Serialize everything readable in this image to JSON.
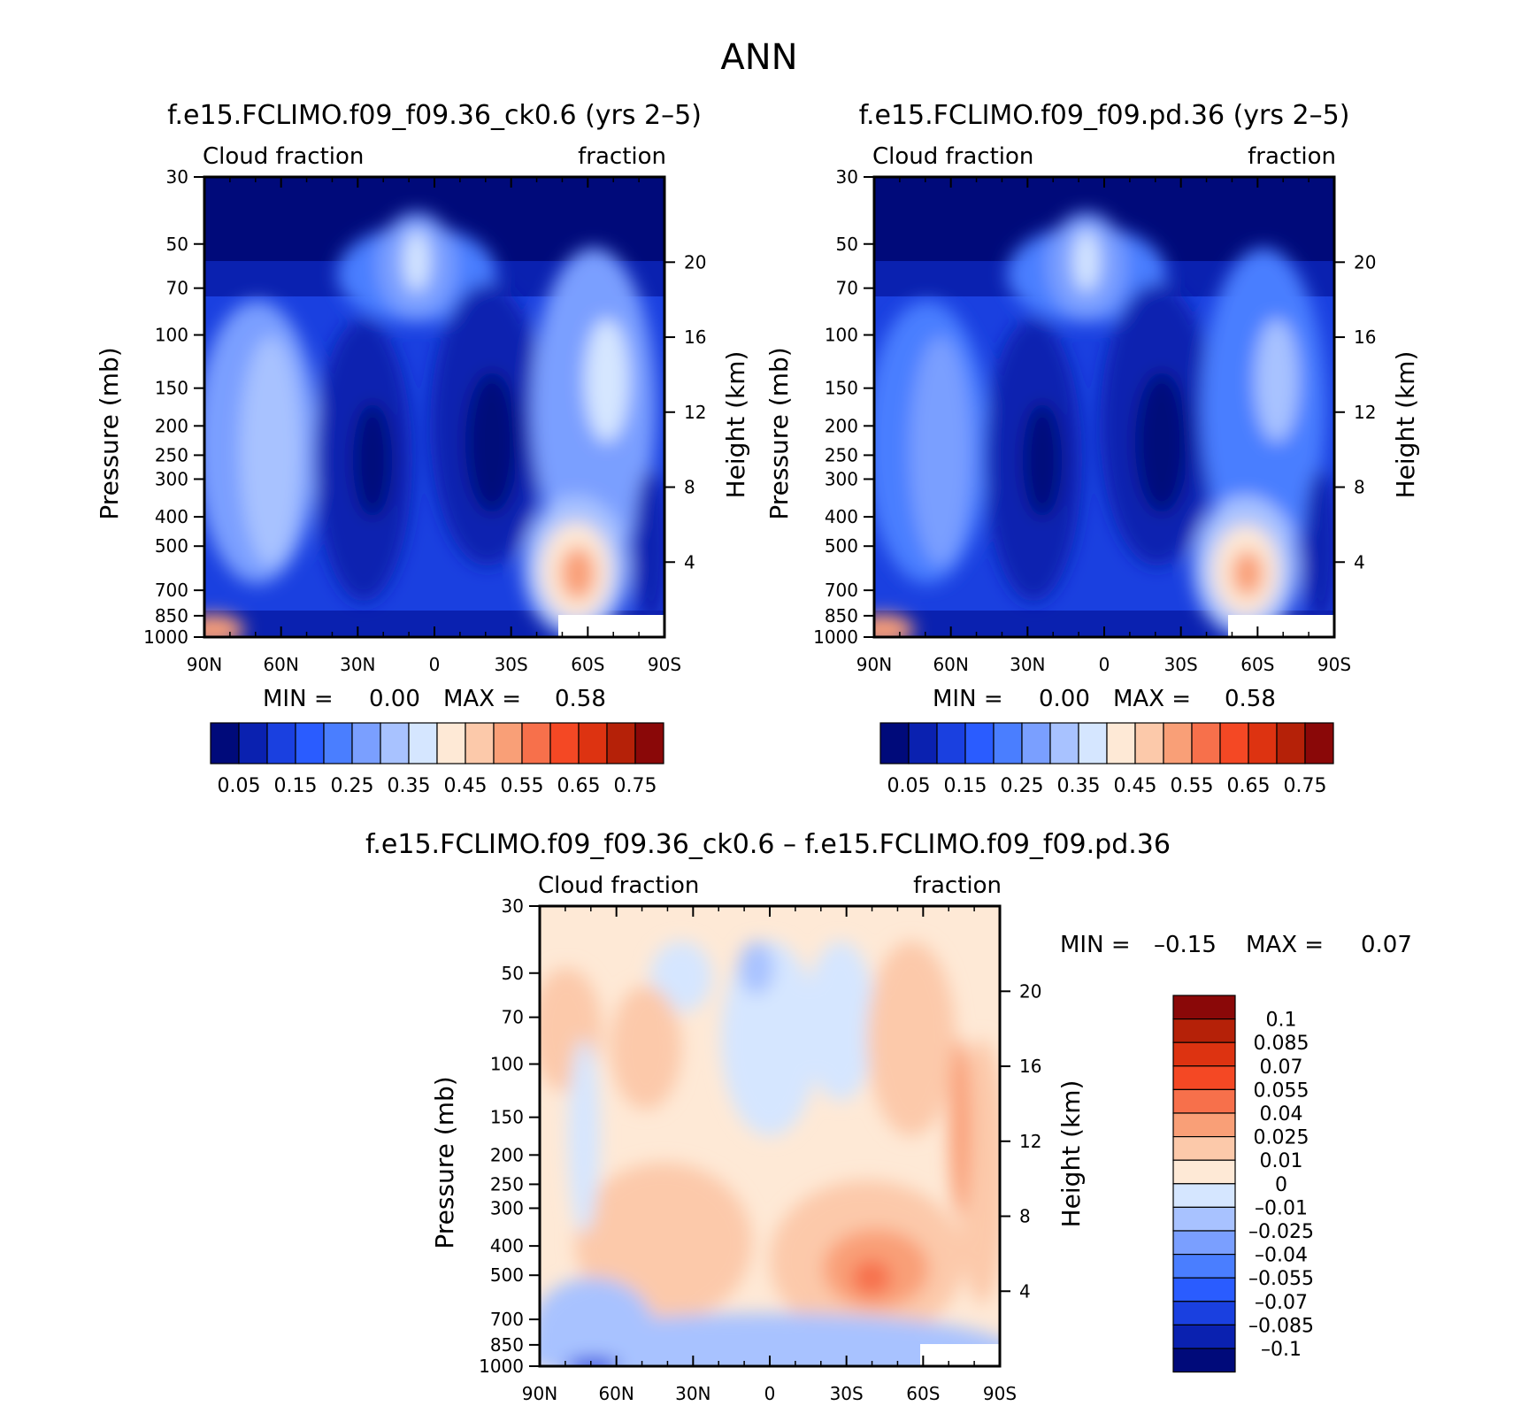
{
  "page": {
    "title": "ANN"
  },
  "chart_data": [
    {
      "id": "panel-a",
      "type": "heatmap",
      "title": "f.e15.FCLIMO.f09_f09.36_ck0.6 (yrs 2–5)",
      "left_label": "Cloud fraction",
      "right_label": "fraction",
      "xlabel": "",
      "ylabel": "Pressure (mb)",
      "y2label": "Height (km)",
      "x_ticks": [
        "90N",
        "60N",
        "30N",
        "0",
        "30S",
        "60S",
        "90S"
      ],
      "y_ticks": [
        "30",
        "50",
        "70",
        "100",
        "150",
        "200",
        "250",
        "300",
        "400",
        "500",
        "700",
        "850",
        "1000"
      ],
      "y2_ticks": [
        "20",
        "16",
        "12",
        "8",
        "4"
      ],
      "stats": {
        "min_label": "MIN =",
        "min": "0.00",
        "max_label": "MAX =",
        "max": "0.58"
      },
      "colorbar_labels": [
        "0.05",
        "0.15",
        "0.25",
        "0.35",
        "0.45",
        "0.55",
        "0.65",
        "0.75"
      ],
      "colorbar_colors": [
        "#000a7a",
        "#0a21b0",
        "#1a40e0",
        "#2a5cff",
        "#4a7eff",
        "#7a9fff",
        "#a8c2ff",
        "#d5e6ff",
        "#fee9d6",
        "#fcc9aa",
        "#f99f77",
        "#f7704b",
        "#f44824",
        "#dd3311",
        "#b52108",
        "#8a0808"
      ]
    },
    {
      "id": "panel-b",
      "type": "heatmap",
      "title": "f.e15.FCLIMO.f09_f09.pd.36 (yrs 2–5)",
      "left_label": "Cloud fraction",
      "right_label": "fraction",
      "xlabel": "",
      "ylabel": "Pressure (mb)",
      "y2label": "Height (km)",
      "x_ticks": [
        "90N",
        "60N",
        "30N",
        "0",
        "30S",
        "60S",
        "90S"
      ],
      "y_ticks": [
        "30",
        "50",
        "70",
        "100",
        "150",
        "200",
        "250",
        "300",
        "400",
        "500",
        "700",
        "850",
        "1000"
      ],
      "y2_ticks": [
        "20",
        "16",
        "12",
        "8",
        "4"
      ],
      "stats": {
        "min_label": "MIN =",
        "min": "0.00",
        "max_label": "MAX =",
        "max": "0.58"
      },
      "colorbar_labels": [
        "0.05",
        "0.15",
        "0.25",
        "0.35",
        "0.45",
        "0.55",
        "0.65",
        "0.75"
      ],
      "colorbar_colors": [
        "#000a7a",
        "#0a21b0",
        "#1a40e0",
        "#2a5cff",
        "#4a7eff",
        "#7a9fff",
        "#a8c2ff",
        "#d5e6ff",
        "#fee9d6",
        "#fcc9aa",
        "#f99f77",
        "#f7704b",
        "#f44824",
        "#dd3311",
        "#b52108",
        "#8a0808"
      ]
    },
    {
      "id": "panel-diff",
      "type": "heatmap",
      "title": "f.e15.FCLIMO.f09_f09.36_ck0.6 – f.e15.FCLIMO.f09_f09.pd.36",
      "left_label": "Cloud fraction",
      "right_label": "fraction",
      "xlabel": "",
      "ylabel": "Pressure (mb)",
      "y2label": "Height (km)",
      "x_ticks": [
        "90N",
        "60N",
        "30N",
        "0",
        "30S",
        "60S",
        "90S"
      ],
      "y_ticks": [
        "30",
        "50",
        "70",
        "100",
        "150",
        "200",
        "250",
        "300",
        "400",
        "500",
        "700",
        "850",
        "1000"
      ],
      "y2_ticks": [
        "20",
        "16",
        "12",
        "8",
        "4"
      ],
      "stats": {
        "min_label": "MIN =",
        "min": "–0.15",
        "max_label": "MAX =",
        "max": "0.07"
      },
      "colorbar_labels": [
        "0.1",
        "0.085",
        "0.07",
        "0.055",
        "0.04",
        "0.025",
        "0.01",
        "0",
        "–0.01",
        "–0.025",
        "–0.04",
        "–0.055",
        "–0.07",
        "–0.085",
        "–0.1"
      ],
      "colorbar_colors": [
        "#8a0808",
        "#b52108",
        "#dd3311",
        "#f44824",
        "#f7704b",
        "#f99f77",
        "#fcc9aa",
        "#fee9d6",
        "#d5e6ff",
        "#a8c2ff",
        "#7a9fff",
        "#4a7eff",
        "#2a5cff",
        "#1a40e0",
        "#0a21b0",
        "#000a7a"
      ]
    }
  ]
}
